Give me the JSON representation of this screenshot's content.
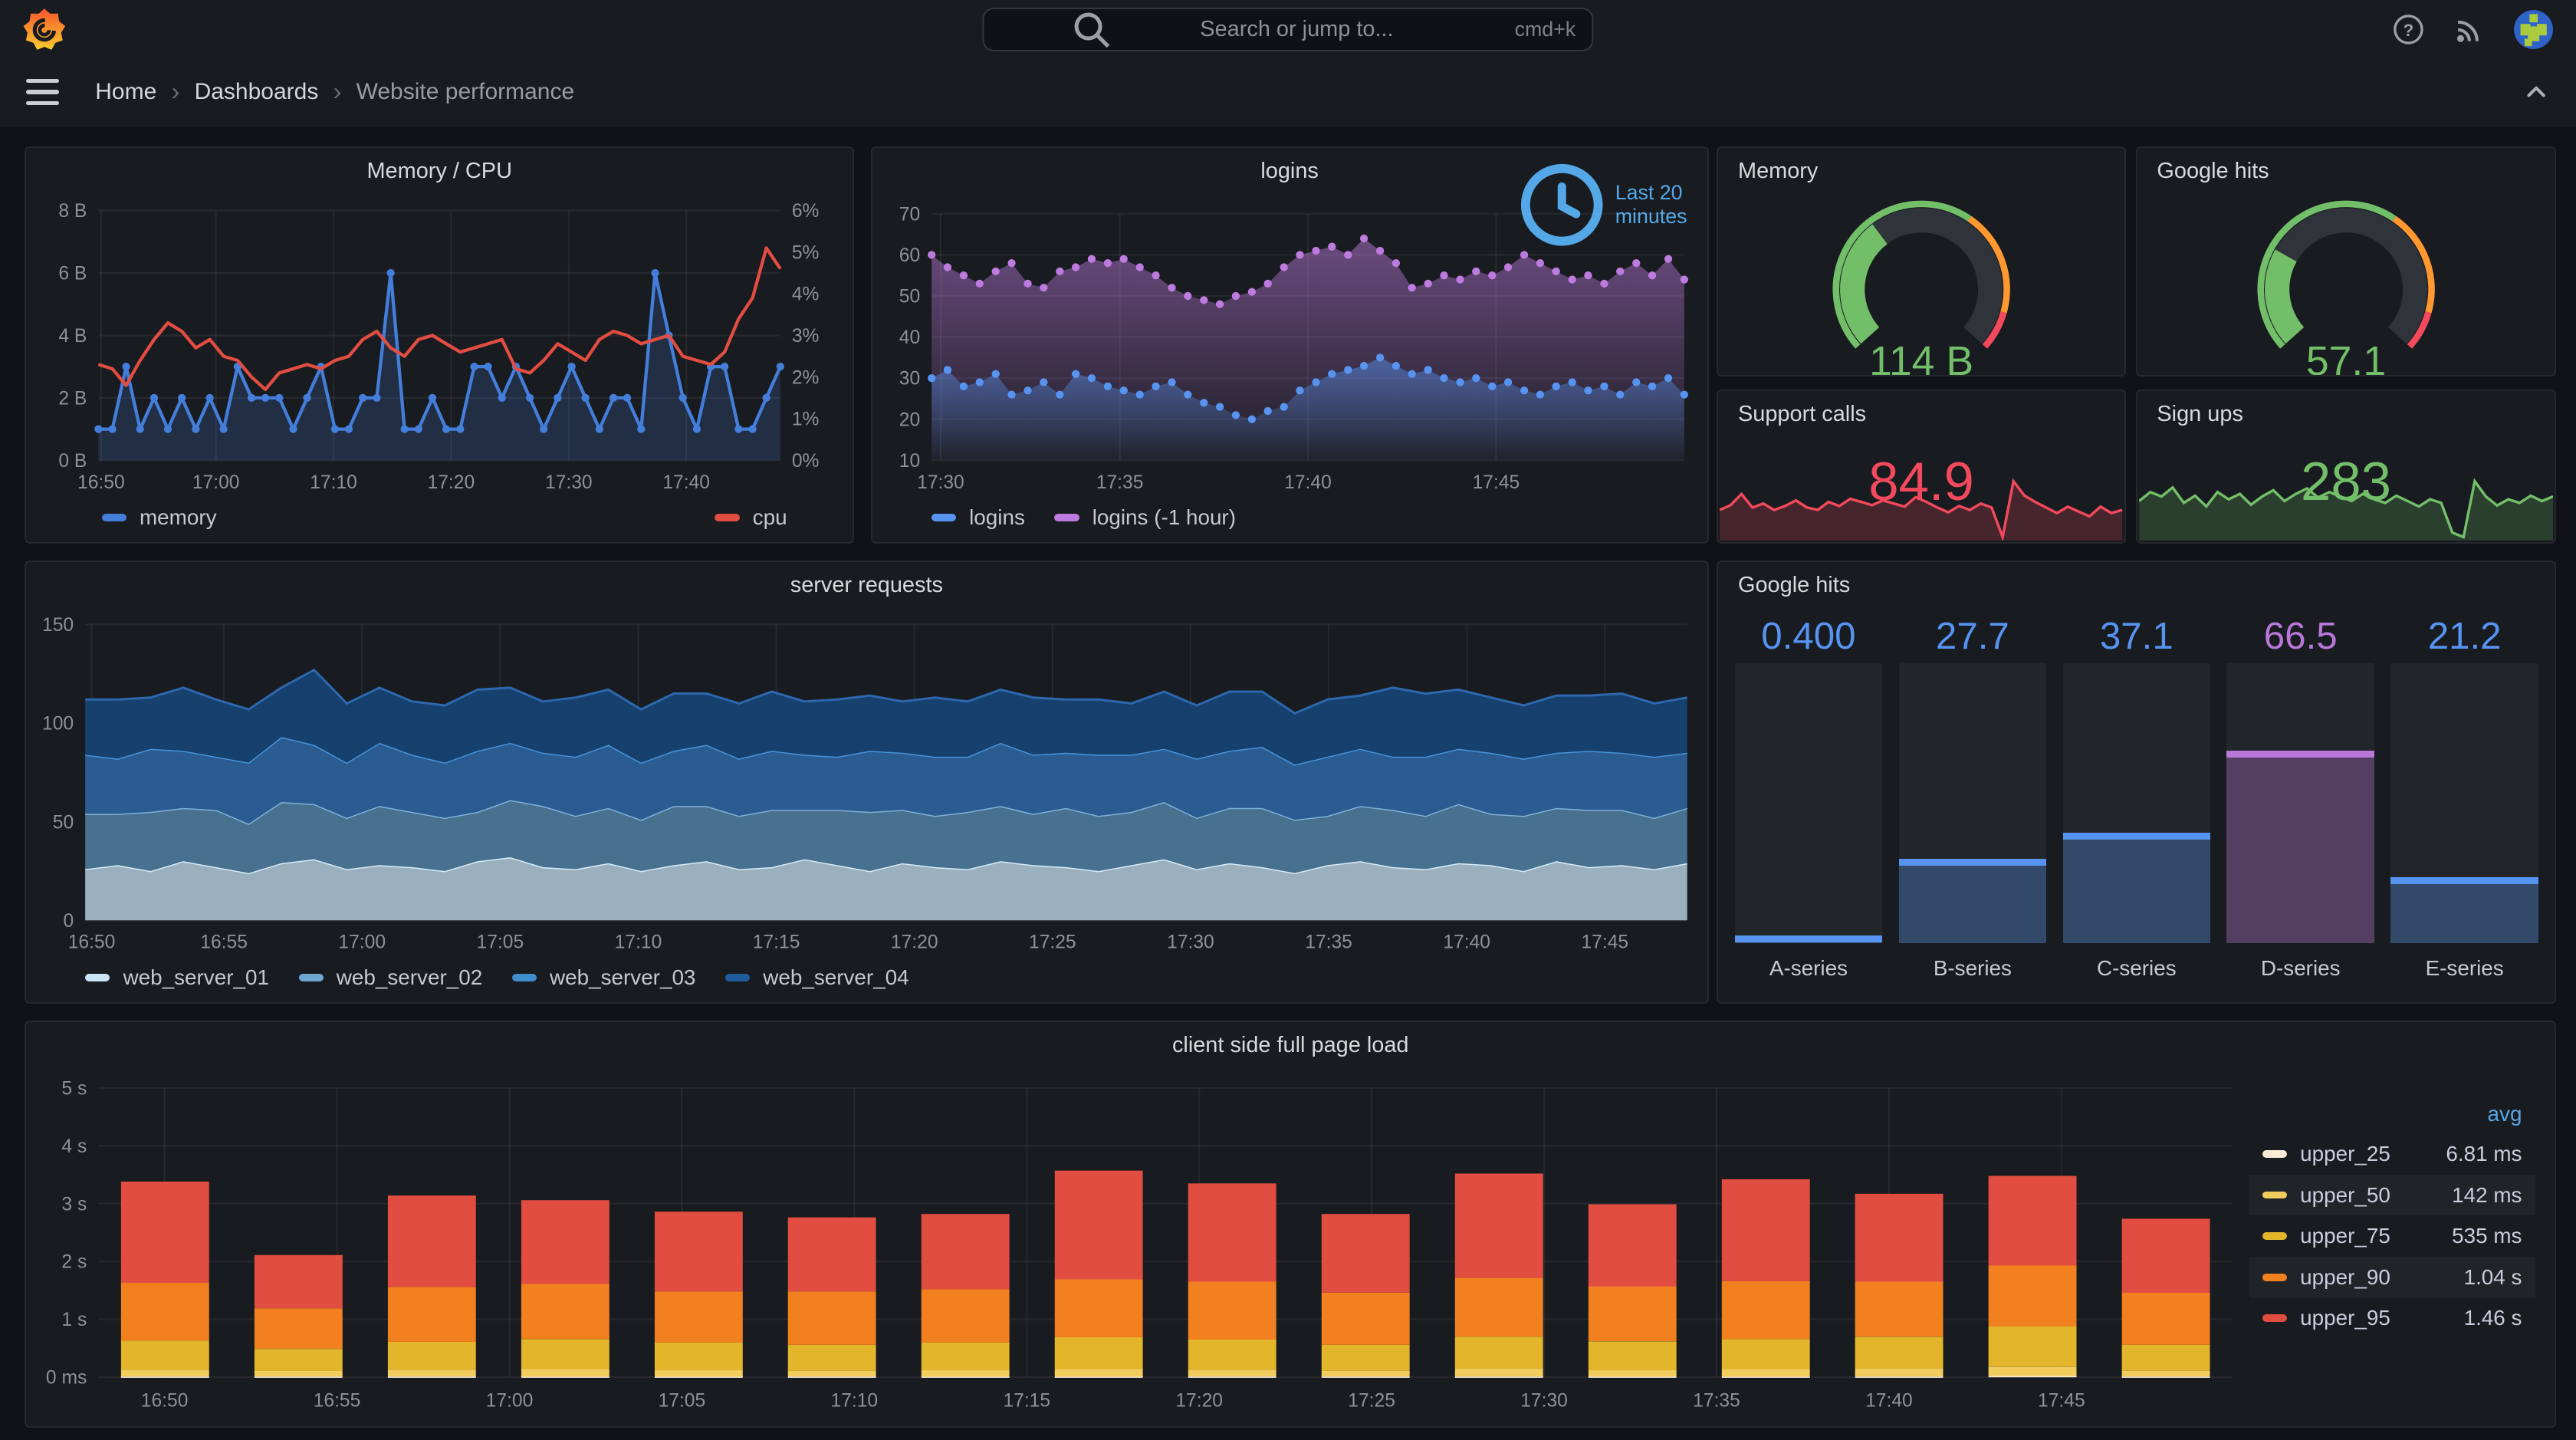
{
  "topbar": {
    "search_placeholder": "Search or jump to...",
    "shortcut": "cmd+k"
  },
  "breadcrumb": {
    "items": [
      "Home",
      "Dashboards",
      "Website performance"
    ]
  },
  "colors": {
    "page_bg": "#111217",
    "panel_bg": "#181B1F",
    "green": "#73BF69",
    "red": "#F2495C",
    "blue": "#5794F2",
    "purple": "#BE7BDF",
    "orange": "#FF9830"
  },
  "panels": {
    "memory_cpu": {
      "title": "Memory / CPU",
      "type": "timeseries",
      "y_left": {
        "min": 0,
        "max": 8,
        "ticks": [
          {
            "v": 0,
            "label": "0 B"
          },
          {
            "v": 2,
            "label": "2 B"
          },
          {
            "v": 4,
            "label": "4 B"
          },
          {
            "v": 6,
            "label": "6 B"
          },
          {
            "v": 8,
            "label": "8 B"
          }
        ]
      },
      "y_right": {
        "min": 0,
        "max": 6,
        "ticks": [
          {
            "v": 0,
            "label": "0%"
          },
          {
            "v": 1,
            "label": "1%"
          },
          {
            "v": 2,
            "label": "2%"
          },
          {
            "v": 3,
            "label": "3%"
          },
          {
            "v": 4,
            "label": "4%"
          },
          {
            "v": 5,
            "label": "5%"
          },
          {
            "v": 6,
            "label": "6%"
          }
        ]
      },
      "x_ticks": [
        {
          "f": 0.004,
          "label": "16:50"
        },
        {
          "f": 0.1724,
          "label": "17:00"
        },
        {
          "f": 0.3448,
          "label": "17:10"
        },
        {
          "f": 0.5172,
          "label": "17:20"
        },
        {
          "f": 0.6897,
          "label": "17:30"
        },
        {
          "f": 0.8621,
          "label": "17:40"
        }
      ],
      "series": [
        {
          "name": "memory",
          "color": "#447EDB",
          "axis": "left",
          "line": true,
          "points": true,
          "area": true,
          "fill_opacity": 0.2,
          "values": [
            1,
            1,
            3,
            1,
            2,
            1,
            2,
            1,
            2,
            1,
            3,
            2,
            2,
            2,
            1,
            2,
            3,
            1,
            1,
            2,
            2,
            6,
            1,
            1,
            2,
            1,
            1,
            3,
            3,
            2,
            3,
            2,
            1,
            2,
            3,
            2,
            1,
            2,
            2,
            1,
            6,
            4,
            2,
            1,
            3,
            3,
            1,
            1,
            2,
            3
          ]
        },
        {
          "name": "cpu",
          "color": "#E24D42",
          "axis": "right",
          "line": true,
          "values": [
            2.3,
            2.2,
            1.8,
            2.4,
            2.9,
            3.3,
            3.1,
            2.7,
            2.9,
            2.5,
            2.4,
            2.0,
            1.7,
            2.1,
            2.2,
            2.3,
            2.2,
            2.4,
            2.5,
            2.9,
            3.1,
            2.7,
            2.5,
            2.9,
            3.0,
            2.8,
            2.6,
            2.7,
            2.8,
            2.9,
            2.2,
            2.1,
            2.4,
            2.8,
            2.6,
            2.4,
            2.9,
            3.1,
            3.0,
            2.8,
            2.9,
            3.0,
            2.5,
            2.4,
            2.3,
            2.6,
            3.4,
            3.9,
            5.1,
            4.6
          ]
        }
      ],
      "legend": [
        {
          "label": "memory",
          "color": "#447EDB"
        },
        {
          "label": "cpu",
          "color": "#E24D42"
        }
      ]
    },
    "logins": {
      "title": "logins",
      "type": "timeseries",
      "time_label": "Last 20 minutes",
      "time_label_color": "#54A8E8",
      "y_left": {
        "min": 10,
        "max": 70,
        "ticks": [
          {
            "v": 10,
            "label": "10"
          },
          {
            "v": 20,
            "label": "20"
          },
          {
            "v": 30,
            "label": "30"
          },
          {
            "v": 40,
            "label": "40"
          },
          {
            "v": 50,
            "label": "50"
          },
          {
            "v": 60,
            "label": "60"
          },
          {
            "v": 70,
            "label": "70"
          }
        ]
      },
      "x_ticks": [
        {
          "f": 0.012,
          "label": "17:30"
        },
        {
          "f": 0.25,
          "label": "17:35"
        },
        {
          "f": 0.5,
          "label": "17:40"
        },
        {
          "f": 0.75,
          "label": "17:45"
        }
      ],
      "series": [
        {
          "name": "logins (-1 hour)",
          "color": "#BE7BDF",
          "axis": "left",
          "points": true,
          "area": true,
          "gradient": true,
          "values": [
            60,
            57,
            55,
            53,
            56,
            58,
            53,
            52,
            56,
            57,
            59,
            58,
            59,
            57,
            55,
            52,
            50,
            49,
            48,
            50,
            51,
            53,
            57,
            60,
            61,
            62,
            60,
            64,
            61,
            58,
            52,
            53,
            55,
            54,
            56,
            55,
            57,
            60,
            58,
            56,
            54,
            55,
            53,
            56,
            58,
            55,
            59,
            54
          ]
        },
        {
          "name": "logins",
          "color": "#5794F2",
          "axis": "left",
          "points": true,
          "area": true,
          "gradient": true,
          "values": [
            30,
            32,
            28,
            29,
            31,
            26,
            27,
            29,
            26,
            31,
            30,
            28,
            27,
            26,
            28,
            29,
            26,
            24,
            23,
            21,
            20,
            22,
            23,
            27,
            29,
            31,
            32,
            33,
            35,
            33,
            31,
            32,
            30,
            29,
            30,
            28,
            29,
            27,
            26,
            28,
            29,
            27,
            28,
            26,
            29,
            28,
            30,
            26
          ]
        }
      ],
      "legend": [
        {
          "label": "logins",
          "color": "#5794F2"
        },
        {
          "label": "logins (-1 hour)",
          "color": "#BE7BDF"
        }
      ]
    },
    "memory_gauge": {
      "title": "Memory",
      "type": "gauge",
      "value": "114 B",
      "value_color": "#73BF69",
      "fraction": 0.36,
      "thresholds": [
        {
          "to": 0.63,
          "color": "#73BF69"
        },
        {
          "to": 0.9,
          "color": "#FF9830"
        },
        {
          "to": 1,
          "color": "#F2495C"
        }
      ]
    },
    "google_hits_gauge": {
      "title": "Google hits",
      "type": "gauge",
      "value": "57.1",
      "value_color": "#73BF69",
      "fraction": 0.27,
      "thresholds": [
        {
          "to": 0.63,
          "color": "#73BF69"
        },
        {
          "to": 0.9,
          "color": "#FF9830"
        },
        {
          "to": 1,
          "color": "#F2495C"
        }
      ]
    },
    "support_calls": {
      "title": "Support calls",
      "type": "stat",
      "value": "84.9",
      "color": "#F2495C",
      "spark": [
        52,
        58,
        72,
        55,
        60,
        52,
        57,
        64,
        55,
        52,
        62,
        57,
        66,
        62,
        58,
        64,
        60,
        56,
        68,
        62,
        55,
        49,
        57,
        52,
        60,
        55,
        18,
        88,
        70,
        62,
        55,
        48,
        56,
        50,
        44,
        56,
        48,
        52
      ]
    },
    "sign_ups": {
      "title": "Sign ups",
      "type": "stat",
      "value": "283",
      "color": "#73BF69",
      "spark": [
        50,
        60,
        55,
        65,
        48,
        56,
        44,
        60,
        52,
        58,
        46,
        55,
        62,
        50,
        58,
        64,
        54,
        60,
        55,
        50,
        58,
        52,
        48,
        56,
        50,
        44,
        52,
        48,
        15,
        10,
        72,
        55,
        45,
        52,
        48,
        56,
        50,
        55
      ]
    },
    "server_requests": {
      "title": "server requests",
      "type": "timeseries-stacked",
      "y_left": {
        "min": 0,
        "max": 150,
        "ticks": [
          {
            "v": 0,
            "label": "0"
          },
          {
            "v": 50,
            "label": "50"
          },
          {
            "v": 100,
            "label": "100"
          },
          {
            "v": 150,
            "label": "150"
          }
        ]
      },
      "x_ticks": [
        {
          "f": 0.004,
          "label": "16:50"
        },
        {
          "f": 0.0866,
          "label": "16:55"
        },
        {
          "f": 0.1728,
          "label": "17:00"
        },
        {
          "f": 0.259,
          "label": "17:05"
        },
        {
          "f": 0.3452,
          "label": "17:10"
        },
        {
          "f": 0.4314,
          "label": "17:15"
        },
        {
          "f": 0.5176,
          "label": "17:20"
        },
        {
          "f": 0.6038,
          "label": "17:25"
        },
        {
          "f": 0.69,
          "label": "17:30"
        },
        {
          "f": 0.7762,
          "label": "17:35"
        },
        {
          "f": 0.8624,
          "label": "17:40"
        },
        {
          "f": 0.9486,
          "label": "17:45"
        }
      ],
      "series": [
        {
          "name": "web_server_01",
          "color": "#D6EBF8",
          "fill": "#9BB0BE",
          "values": [
            26,
            28,
            25,
            30,
            27,
            24,
            29,
            31,
            26,
            28,
            27,
            25,
            30,
            32,
            27,
            26,
            29,
            25,
            28,
            30,
            26,
            27,
            31,
            28,
            25,
            29,
            27,
            26,
            30,
            28,
            27,
            25,
            28,
            31,
            26,
            29,
            27,
            24,
            28,
            30,
            27,
            26,
            29,
            28,
            25,
            30,
            27,
            28,
            26,
            29
          ]
        },
        {
          "name": "web_server_02",
          "color": "#7FB0D8",
          "fill": "#48708F",
          "values": [
            28,
            26,
            30,
            27,
            29,
            25,
            31,
            28,
            26,
            30,
            28,
            27,
            25,
            29,
            31,
            27,
            28,
            26,
            30,
            28,
            27,
            29,
            25,
            28,
            30,
            27,
            26,
            29,
            28,
            26,
            30,
            28,
            27,
            29,
            26,
            28,
            30,
            27,
            25,
            28,
            29,
            27,
            30,
            26,
            28,
            27,
            29,
            28,
            26,
            28
          ]
        },
        {
          "name": "web_server_03",
          "color": "#4793DB",
          "fill": "#2B5C91",
          "values": [
            30,
            28,
            32,
            29,
            27,
            31,
            33,
            30,
            28,
            32,
            29,
            28,
            31,
            29,
            27,
            30,
            32,
            29,
            28,
            31,
            29,
            30,
            28,
            27,
            31,
            29,
            30,
            28,
            32,
            30,
            28,
            31,
            29,
            27,
            30,
            29,
            31,
            28,
            30,
            29,
            27,
            30,
            28,
            31,
            29,
            28,
            30,
            29,
            31,
            28
          ]
        },
        {
          "name": "web_server_04",
          "color": "#2D67AE",
          "fill": "#16406D",
          "values": [
            28,
            30,
            26,
            32,
            29,
            27,
            25,
            38,
            30,
            28,
            27,
            29,
            31,
            28,
            26,
            30,
            28,
            27,
            29,
            26,
            28,
            30,
            27,
            29,
            28,
            26,
            30,
            28,
            27,
            29,
            27,
            28,
            26,
            29,
            27,
            30,
            28,
            26,
            29,
            27,
            35,
            32,
            30,
            28,
            27,
            29,
            28,
            30,
            27,
            28
          ]
        }
      ],
      "legend": [
        {
          "label": "web_server_01",
          "color": "#CCE5F4"
        },
        {
          "label": "web_server_02",
          "color": "#6FA8D2"
        },
        {
          "label": "web_server_03",
          "color": "#3E8ECC"
        },
        {
          "label": "web_server_04",
          "color": "#1F5C9E"
        }
      ]
    },
    "google_hits_bars": {
      "title": "Google hits",
      "type": "bar-gauge",
      "max": 100,
      "bars": [
        {
          "label": "A-series",
          "display": "0.400",
          "value": 0.4,
          "color": "#5794F2"
        },
        {
          "label": "B-series",
          "display": "27.7",
          "value": 27.7,
          "color": "#5794F2"
        },
        {
          "label": "C-series",
          "display": "37.1",
          "value": 37.1,
          "color": "#5794F2"
        },
        {
          "label": "D-series",
          "display": "66.5",
          "value": 66.5,
          "color": "#B877D9"
        },
        {
          "label": "E-series",
          "display": "21.2",
          "value": 21.2,
          "color": "#5794F2"
        }
      ]
    },
    "page_load": {
      "title": "client side full page load",
      "type": "bar",
      "y": {
        "min": 0,
        "max": 5,
        "ticks": [
          {
            "v": 0,
            "label": "0 ms"
          },
          {
            "v": 1,
            "label": "1 s"
          },
          {
            "v": 2,
            "label": "2 s"
          },
          {
            "v": 3,
            "label": "3 s"
          },
          {
            "v": 4,
            "label": "4 s"
          },
          {
            "v": 5,
            "label": "5 s"
          }
        ]
      },
      "x_ticks": [
        {
          "f": 0.031,
          "label": "16:50"
        },
        {
          "f": 0.1118,
          "label": "16:55"
        },
        {
          "f": 0.1926,
          "label": "17:00"
        },
        {
          "f": 0.2734,
          "label": "17:05"
        },
        {
          "f": 0.3542,
          "label": "17:10"
        },
        {
          "f": 0.435,
          "label": "17:15"
        },
        {
          "f": 0.5158,
          "label": "17:20"
        },
        {
          "f": 0.5966,
          "label": "17:25"
        },
        {
          "f": 0.6774,
          "label": "17:30"
        },
        {
          "f": 0.7582,
          "label": "17:35"
        },
        {
          "f": 0.839,
          "label": "17:40"
        },
        {
          "f": 0.9198,
          "label": "17:45"
        }
      ],
      "stack_keys": [
        "upper_25",
        "upper_50",
        "upper_75",
        "upper_90",
        "upper_95"
      ],
      "stack_colors": [
        "#FAEBD5",
        "#F2CC5C",
        "#E2B52B",
        "#F2801F",
        "#E24D42"
      ],
      "bars": [
        [
          0.01,
          0.12,
          0.5,
          1.0,
          1.75
        ],
        [
          0.01,
          0.1,
          0.38,
          0.7,
          0.92
        ],
        [
          0.01,
          0.12,
          0.48,
          0.95,
          1.58
        ],
        [
          0.01,
          0.13,
          0.52,
          0.95,
          1.45
        ],
        [
          0.01,
          0.11,
          0.48,
          0.88,
          1.38
        ],
        [
          0.01,
          0.1,
          0.45,
          0.92,
          1.28
        ],
        [
          0.01,
          0.11,
          0.48,
          0.92,
          1.3
        ],
        [
          0.01,
          0.13,
          0.55,
          1.0,
          1.88
        ],
        [
          0.01,
          0.12,
          0.52,
          1.0,
          1.7
        ],
        [
          0.01,
          0.1,
          0.45,
          0.9,
          1.36
        ],
        [
          0.01,
          0.14,
          0.55,
          1.02,
          1.8
        ],
        [
          0.01,
          0.11,
          0.5,
          0.95,
          1.42
        ],
        [
          0.01,
          0.13,
          0.52,
          1.0,
          1.76
        ],
        [
          0.01,
          0.14,
          0.55,
          0.95,
          1.52
        ],
        [
          0.02,
          0.16,
          0.7,
          1.05,
          1.55
        ],
        [
          0.01,
          0.1,
          0.45,
          0.9,
          1.28
        ]
      ],
      "legend": {
        "header": "avg",
        "header_color": "#58A6E5",
        "rows": [
          {
            "name": "upper_25",
            "avg": "6.81 ms",
            "color": "#FAEBD5"
          },
          {
            "name": "upper_50",
            "avg": "142 ms",
            "color": "#F2CC5C"
          },
          {
            "name": "upper_75",
            "avg": "535 ms",
            "color": "#E2B52B"
          },
          {
            "name": "upper_90",
            "avg": "1.04 s",
            "color": "#F2801F"
          },
          {
            "name": "upper_95",
            "avg": "1.46 s",
            "color": "#E24D42"
          }
        ]
      }
    }
  }
}
